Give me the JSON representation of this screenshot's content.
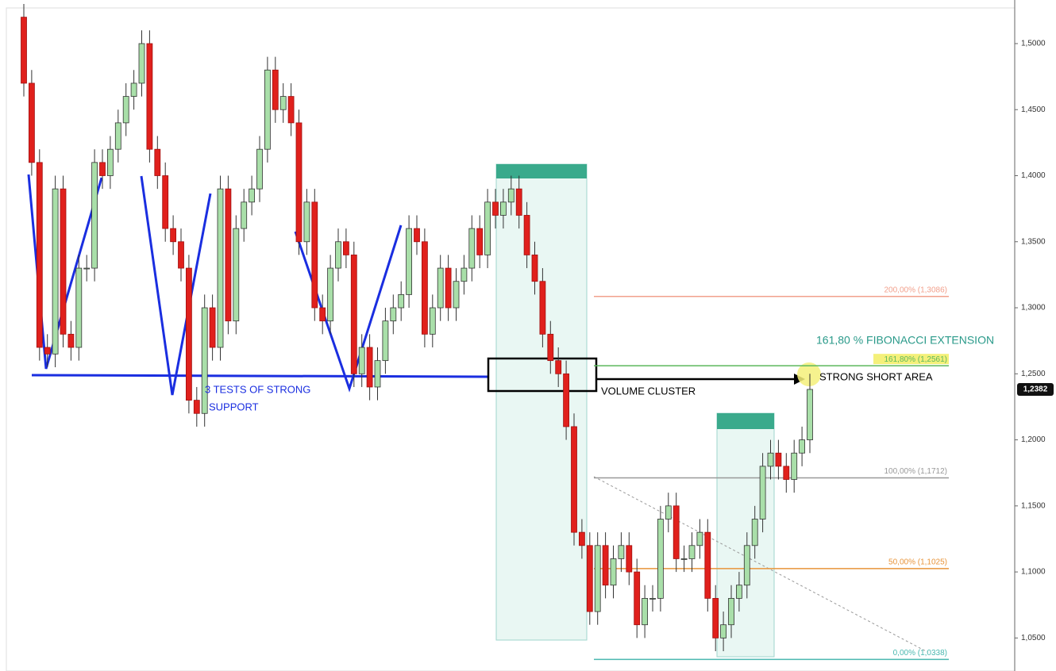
{
  "chart_data": {
    "type": "candlestick",
    "open": [
      1.52,
      1.47,
      1.41,
      1.27,
      1.265,
      1.39,
      1.28,
      1.27,
      1.33,
      1.33,
      1.41,
      1.4,
      1.42,
      1.44,
      1.46,
      1.47,
      1.5,
      1.42,
      1.4,
      1.36,
      1.35,
      1.33,
      1.23,
      1.22,
      1.3,
      1.27,
      1.39,
      1.29,
      1.36,
      1.38,
      1.39,
      1.42,
      1.48,
      1.45,
      1.46,
      1.44,
      1.35,
      1.38,
      1.3,
      1.29,
      1.33,
      1.35,
      1.34,
      1.25,
      1.27,
      1.24,
      1.26,
      1.29,
      1.3,
      1.31,
      1.36,
      1.35,
      1.28,
      1.3,
      1.33,
      1.3,
      1.32,
      1.33,
      1.36,
      1.34,
      1.38,
      1.37,
      1.38,
      1.39,
      1.37,
      1.34,
      1.32,
      1.28,
      1.26,
      1.25,
      1.21,
      1.13,
      1.12,
      1.07,
      1.12,
      1.09,
      1.11,
      1.12,
      1.1,
      1.06,
      1.08,
      1.08,
      1.14,
      1.15,
      1.11,
      1.11,
      1.12,
      1.13,
      1.08,
      1.05,
      1.06,
      1.08,
      1.09,
      1.12,
      1.14,
      1.18,
      1.19,
      1.18,
      1.17,
      1.19,
      1.2
    ],
    "high": [
      1.53,
      1.48,
      1.42,
      1.28,
      1.4,
      1.4,
      1.29,
      1.34,
      1.34,
      1.42,
      1.42,
      1.43,
      1.45,
      1.47,
      1.48,
      1.51,
      1.51,
      1.43,
      1.41,
      1.37,
      1.36,
      1.34,
      1.24,
      1.31,
      1.31,
      1.4,
      1.4,
      1.37,
      1.39,
      1.4,
      1.43,
      1.49,
      1.49,
      1.47,
      1.47,
      1.45,
      1.39,
      1.39,
      1.31,
      1.34,
      1.36,
      1.36,
      1.35,
      1.28,
      1.28,
      1.27,
      1.3,
      1.31,
      1.32,
      1.37,
      1.37,
      1.36,
      1.31,
      1.34,
      1.34,
      1.33,
      1.34,
      1.37,
      1.37,
      1.39,
      1.39,
      1.39,
      1.4,
      1.4,
      1.38,
      1.35,
      1.33,
      1.29,
      1.27,
      1.26,
      1.22,
      1.14,
      1.13,
      1.13,
      1.13,
      1.12,
      1.13,
      1.13,
      1.11,
      1.09,
      1.09,
      1.15,
      1.16,
      1.16,
      1.12,
      1.13,
      1.14,
      1.14,
      1.09,
      1.07,
      1.09,
      1.1,
      1.13,
      1.15,
      1.19,
      1.2,
      1.2,
      1.19,
      1.2,
      1.21,
      1.25
    ],
    "low": [
      1.46,
      1.4,
      1.26,
      1.255,
      1.255,
      1.27,
      1.26,
      1.26,
      1.32,
      1.32,
      1.39,
      1.39,
      1.41,
      1.43,
      1.45,
      1.46,
      1.41,
      1.39,
      1.35,
      1.34,
      1.32,
      1.22,
      1.21,
      1.21,
      1.26,
      1.26,
      1.28,
      1.28,
      1.35,
      1.37,
      1.38,
      1.41,
      1.44,
      1.44,
      1.43,
      1.34,
      1.34,
      1.29,
      1.28,
      1.28,
      1.32,
      1.33,
      1.24,
      1.24,
      1.23,
      1.23,
      1.25,
      1.28,
      1.29,
      1.3,
      1.34,
      1.27,
      1.27,
      1.29,
      1.29,
      1.29,
      1.31,
      1.32,
      1.33,
      1.33,
      1.36,
      1.36,
      1.37,
      1.36,
      1.33,
      1.31,
      1.27,
      1.25,
      1.24,
      1.2,
      1.12,
      1.11,
      1.06,
      1.06,
      1.08,
      1.08,
      1.1,
      1.09,
      1.05,
      1.05,
      1.07,
      1.07,
      1.13,
      1.1,
      1.1,
      1.1,
      1.11,
      1.07,
      1.04,
      1.04,
      1.05,
      1.07,
      1.08,
      1.11,
      1.13,
      1.17,
      1.17,
      1.16,
      1.16,
      1.18,
      1.19
    ],
    "close": [
      1.47,
      1.41,
      1.27,
      1.265,
      1.39,
      1.28,
      1.27,
      1.33,
      1.33,
      1.41,
      1.4,
      1.42,
      1.44,
      1.46,
      1.47,
      1.5,
      1.42,
      1.4,
      1.36,
      1.35,
      1.33,
      1.23,
      1.22,
      1.3,
      1.27,
      1.39,
      1.29,
      1.36,
      1.38,
      1.39,
      1.42,
      1.48,
      1.45,
      1.46,
      1.44,
      1.35,
      1.38,
      1.3,
      1.29,
      1.33,
      1.35,
      1.34,
      1.25,
      1.27,
      1.24,
      1.26,
      1.29,
      1.3,
      1.31,
      1.36,
      1.35,
      1.28,
      1.3,
      1.33,
      1.3,
      1.32,
      1.33,
      1.36,
      1.34,
      1.38,
      1.37,
      1.38,
      1.39,
      1.37,
      1.34,
      1.32,
      1.28,
      1.26,
      1.25,
      1.21,
      1.13,
      1.12,
      1.07,
      1.12,
      1.09,
      1.11,
      1.12,
      1.1,
      1.06,
      1.08,
      1.08,
      1.14,
      1.15,
      1.11,
      1.11,
      1.12,
      1.13,
      1.08,
      1.05,
      1.06,
      1.08,
      1.09,
      1.12,
      1.14,
      1.18,
      1.19,
      1.18,
      1.17,
      1.19,
      1.2,
      1.2382
    ],
    "up_color": "#a9dfa9",
    "down_color": "#e0201c",
    "ylim": [
      1.025,
      1.527
    ],
    "yticks": [
      {
        "value": 1.5,
        "label": "1,5000"
      },
      {
        "value": 1.45,
        "label": "1,4500"
      },
      {
        "value": 1.4,
        "label": "1,4000"
      },
      {
        "value": 1.35,
        "label": "1,3500"
      },
      {
        "value": 1.3,
        "label": "1,3000"
      },
      {
        "value": 1.25,
        "label": "1,2500"
      },
      {
        "value": 1.2,
        "label": "1,2000"
      },
      {
        "value": 1.15,
        "label": "1,1500"
      },
      {
        "value": 1.1,
        "label": "1,1000"
      },
      {
        "value": 1.05,
        "label": "1,0500"
      }
    ],
    "last_price": {
      "value": 1.2382,
      "label": "1,2382"
    },
    "fib_levels": [
      {
        "value": 1.3086,
        "label": "200,00% (1,3086)",
        "color": "#f2a08c"
      },
      {
        "value": 1.2561,
        "label": "161,80% (1,2561)",
        "color": "#5cb85c"
      },
      {
        "value": 1.1712,
        "label": "100,00% (1,1712)",
        "color": "#999999"
      },
      {
        "value": 1.1025,
        "label": "50,00% (1,1025)",
        "color": "#e8943a"
      },
      {
        "value": 1.0338,
        "label": "0,00% (1,0338)",
        "color": "#4ab8b0"
      }
    ],
    "annotations": [
      "3 TESTS OF STRONG",
      "SUPPORT",
      "VOLUME CLUSTER",
      "161,80 % FIBONACCI EXTENSION",
      "STRONG SHORT AREA"
    ]
  }
}
